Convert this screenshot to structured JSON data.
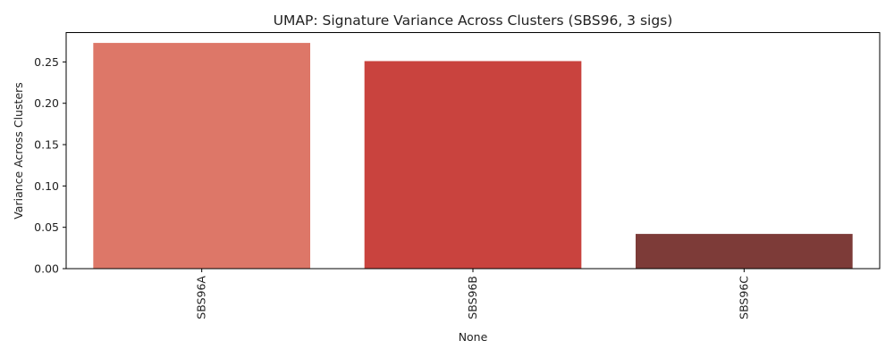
{
  "chart_data": {
    "type": "bar",
    "title": "UMAP: Signature Variance Across Clusters (SBS96, 3 sigs)",
    "xlabel": "None",
    "ylabel": "Variance Across Clusters",
    "categories": [
      "SBS96A",
      "SBS96B",
      "SBS96C"
    ],
    "values": [
      0.273,
      0.251,
      0.042
    ],
    "colors": [
      "#dd7768",
      "#c9433e",
      "#7d3b38"
    ],
    "ylim": [
      0,
      0.2855
    ],
    "yticks": [
      0.0,
      0.05,
      0.1,
      0.15,
      0.2,
      0.25
    ],
    "ytick_labels": [
      "0.00",
      "0.05",
      "0.10",
      "0.15",
      "0.20",
      "0.25"
    ],
    "grid": false,
    "legend": "none"
  }
}
